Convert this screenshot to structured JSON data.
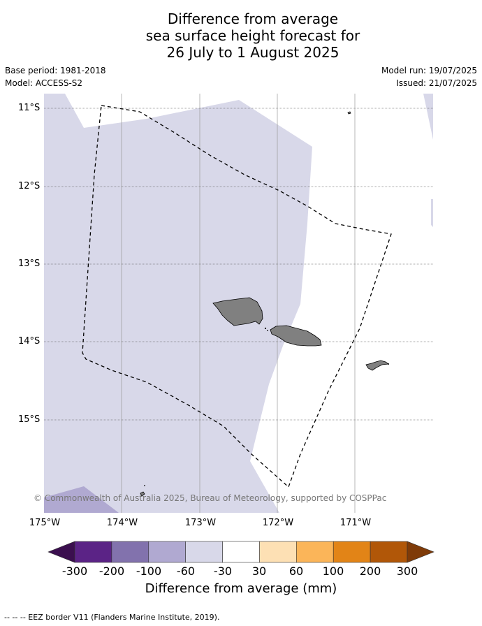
{
  "title": {
    "line1": "Difference from average",
    "line2": "sea surface height forecast for",
    "line3": "26 July to 1 August 2025"
  },
  "meta": {
    "base_period": "Base period: 1981-2018",
    "model": "Model: ACCESS-S2",
    "model_run": "Model run: 19/07/2025",
    "issued": "Issued: 21/07/2025"
  },
  "map": {
    "lat_labels": [
      "11°S",
      "12°S",
      "13°S",
      "14°S",
      "15°S"
    ],
    "lon_labels": [
      "175°W",
      "174°W",
      "173°W",
      "172°W",
      "171°W"
    ],
    "copyright": "© Commonwealth of Australia 2025, Bureau of Meteorology, supported by COSPPac",
    "colors": {
      "land": "#808080",
      "ocean_-60_-30": "#d8d8e9",
      "ocean_-100_-60": "#b0a9d1",
      "ocean_-30_30": "#ffffff",
      "eez_border": "#000000"
    }
  },
  "colorbar": {
    "label": "Difference from average (mm)",
    "ticks": [
      "-300",
      "-200",
      "-100",
      "-60",
      "-30",
      "30",
      "60",
      "100",
      "200",
      "300"
    ],
    "colors": [
      "#3b0f4f",
      "#5b2386",
      "#8272ad",
      "#b0a9d1",
      "#d8d8e9",
      "#ffffff",
      "#fde0b4",
      "#fbb559",
      "#e28417",
      "#b15708",
      "#7f3b08"
    ]
  },
  "footnote": "-- -- -- EEZ border V11 (Flanders Marine Institute, 2019)."
}
